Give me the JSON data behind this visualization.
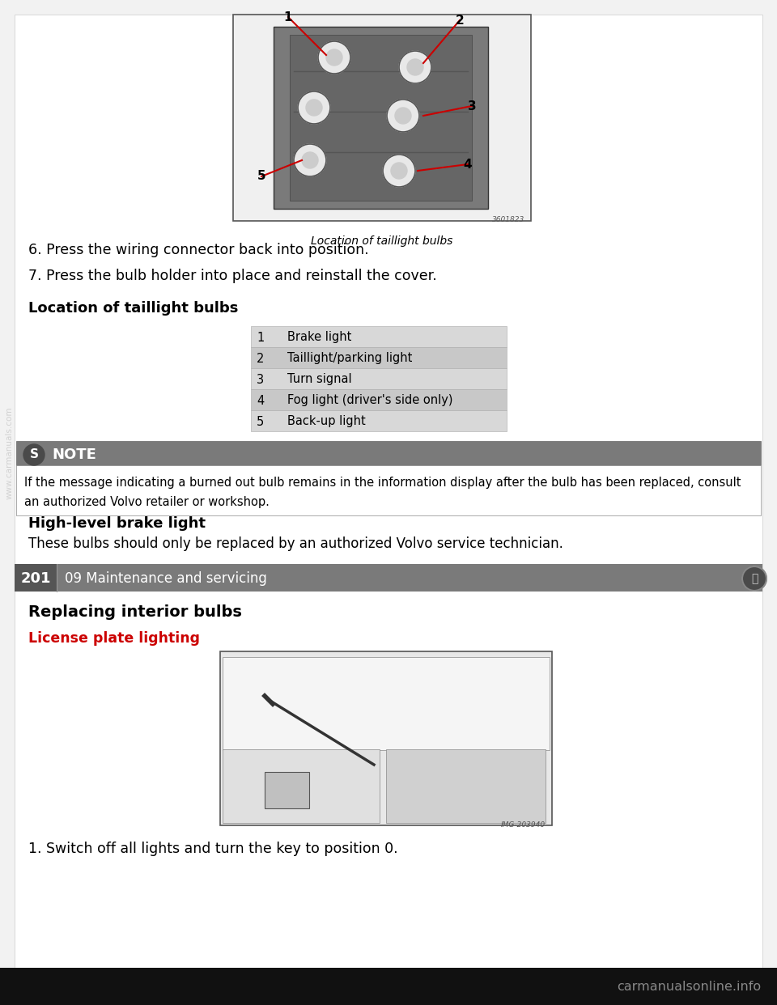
{
  "bg_color": "#f2f2f2",
  "content_bg": "#ffffff",
  "text_color": "#000000",
  "step6": "6. Press the wiring connector back into position.",
  "step7": "7. Press the bulb holder into place and reinstall the cover.",
  "section_title": "Location of taillight bulbs",
  "table_row_bg1": "#d8d8d8",
  "table_row_bg2": "#c8c8c8",
  "table_rows": [
    [
      "1",
      "Brake light"
    ],
    [
      "2",
      "Taillight/parking light"
    ],
    [
      "3",
      "Turn signal"
    ],
    [
      "4",
      "Fog light (driver's side only)"
    ],
    [
      "5",
      "Back-up light"
    ]
  ],
  "note_header_bg": "#7a7a7a",
  "note_header_text": "NOTE",
  "note_text_line1": "If the message indicating a burned out bulb remains in the information display after the bulb has been replaced, consult",
  "note_text_line2": "an authorized Volvo retailer or workshop.",
  "highlevel_title": "High-level brake light",
  "highlevel_text": "These bulbs should only be replaced by an authorized Volvo service technician.",
  "footer_bg": "#7a7a7a",
  "footer_page_bg": "#555555",
  "footer_page": "201",
  "footer_section": "09 Maintenance and servicing",
  "section2_title": "Replacing interior bulbs",
  "license_title": "License plate lighting",
  "license_title_color": "#cc0000",
  "step1_bottom": "1. Switch off all lights and turn the key to position 0.",
  "bottom_bar_bg": "#111111",
  "bottom_site": "carmanualsonline.info",
  "bottom_site_color": "#888888",
  "watermark_color": "#bbbbbb",
  "watermark_text": "www.carmanuals.com"
}
